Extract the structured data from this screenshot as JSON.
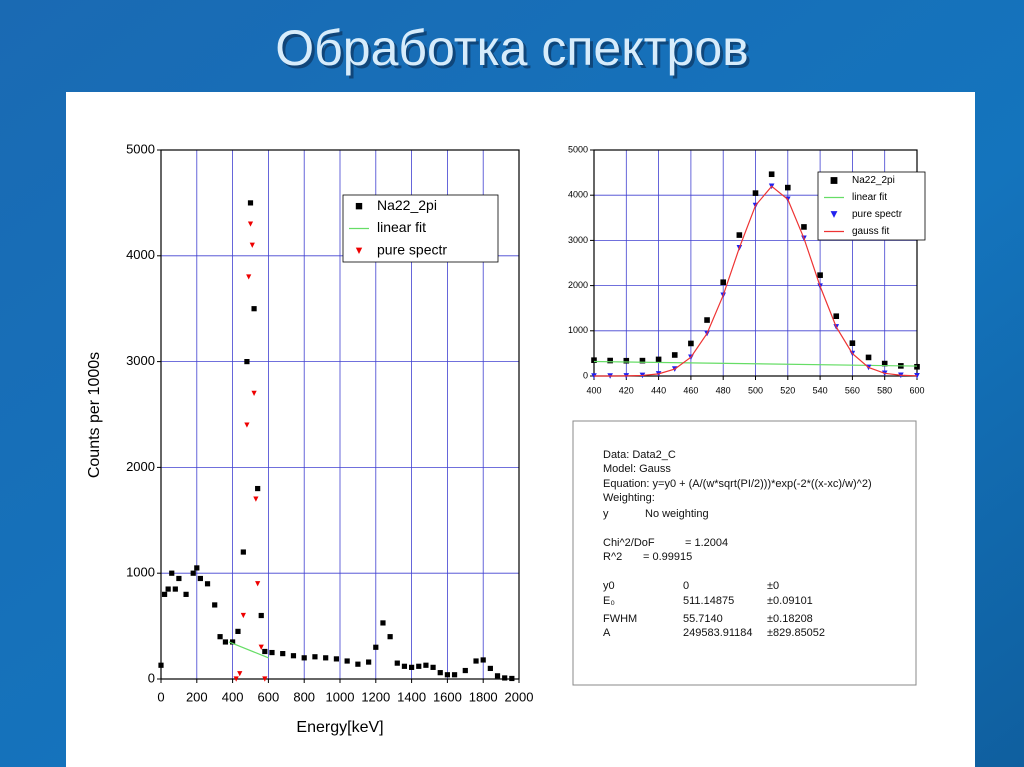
{
  "slide_title": "Обработка спектров",
  "chart_data": [
    {
      "type": "scatter",
      "xlabel": "Energy[keV]",
      "ylabel": "Counts per 1000s",
      "xlim": [
        0,
        2000
      ],
      "ylim": [
        0,
        5000
      ],
      "xticks": [
        0,
        200,
        400,
        600,
        800,
        1000,
        1200,
        1400,
        1600,
        1800,
        2000
      ],
      "yticks": [
        0,
        1000,
        2000,
        3000,
        4000,
        5000
      ],
      "grid": true,
      "legend": "upper right",
      "series": [
        {
          "name": "Na22_2pi",
          "color": "#000000",
          "marker": "square",
          "x": [
            0,
            20,
            40,
            60,
            80,
            100,
            140,
            180,
            200,
            220,
            260,
            300,
            330,
            360,
            400,
            430,
            460,
            480,
            500,
            520,
            540,
            560,
            580,
            620,
            680,
            740,
            800,
            860,
            920,
            980,
            1040,
            1100,
            1160,
            1200,
            1240,
            1280,
            1320,
            1360,
            1400,
            1440,
            1480,
            1520,
            1560,
            1600,
            1640,
            1700,
            1760,
            1800,
            1840,
            1880,
            1920,
            1960
          ],
          "values": [
            130,
            800,
            850,
            1000,
            850,
            950,
            800,
            1000,
            1050,
            950,
            900,
            700,
            400,
            350,
            350,
            450,
            1200,
            3000,
            4500,
            3500,
            1800,
            600,
            260,
            250,
            240,
            220,
            200,
            210,
            200,
            190,
            170,
            140,
            160,
            300,
            530,
            400,
            150,
            120,
            110,
            120,
            130,
            110,
            60,
            40,
            40,
            80,
            170,
            180,
            100,
            30,
            10,
            5
          ]
        },
        {
          "name": "linear fit",
          "color": "#66dd66",
          "marker": "line",
          "x": [
            380,
            600
          ],
          "values": [
            350,
            200
          ]
        },
        {
          "name": "pure spectr",
          "color": "#ee0000",
          "marker": "triangle",
          "x": [
            420,
            440,
            460,
            480,
            490,
            500,
            510,
            520,
            530,
            540,
            560,
            580
          ],
          "values": [
            0,
            50,
            600,
            2400,
            3800,
            4300,
            4100,
            2700,
            1700,
            900,
            300,
            0
          ]
        }
      ]
    },
    {
      "type": "scatter",
      "xlim": [
        400,
        600
      ],
      "ylim": [
        0,
        5000
      ],
      "xticks": [
        400,
        420,
        440,
        460,
        480,
        500,
        520,
        540,
        560,
        580,
        600
      ],
      "yticks": [
        0,
        1000,
        2000,
        3000,
        4000,
        5000
      ],
      "grid": true,
      "legend": "upper right",
      "series": [
        {
          "name": "Na22_2pi",
          "color": "#000000",
          "marker": "square",
          "x": [
            400,
            410,
            420,
            430,
            440,
            450,
            460,
            470,
            480,
            490,
            500,
            510,
            520,
            530,
            540,
            550,
            560,
            570,
            580,
            590,
            600
          ],
          "values": [
            350,
            342,
            338,
            340,
            367,
            465,
            720,
            1238,
            2075,
            3118,
            4046,
            4464,
            4168,
            3298,
            2231,
            1323,
            726,
            411,
            275,
            224,
            204
          ]
        },
        {
          "name": "linear fit",
          "color": "#66dd66",
          "marker": "line",
          "x": [
            400,
            600
          ],
          "values": [
            320,
            220
          ]
        },
        {
          "name": "pure spectr",
          "color": "#2222ee",
          "marker": "triangle",
          "x": [
            400,
            410,
            420,
            430,
            440,
            450,
            460,
            470,
            480,
            490,
            500,
            510,
            520,
            530,
            540,
            550,
            560,
            570,
            580,
            590,
            600
          ],
          "values": [
            0,
            0,
            3,
            12,
            47,
            153,
            415,
            940,
            1785,
            2836,
            3771,
            4196,
            3908,
            3046,
            1986,
            1085,
            496,
            189,
            60,
            16,
            4
          ]
        },
        {
          "name": "gauss fit",
          "color": "#ee3333",
          "marker": "line",
          "x": [
            400,
            410,
            420,
            430,
            440,
            450,
            460,
            470,
            480,
            490,
            500,
            510,
            520,
            530,
            540,
            550,
            560,
            570,
            580,
            590,
            600
          ],
          "values": [
            0,
            0,
            3,
            12,
            47,
            153,
            415,
            940,
            1785,
            2836,
            3771,
            4196,
            3908,
            3046,
            1986,
            1085,
            496,
            189,
            60,
            16,
            4
          ]
        }
      ]
    }
  ],
  "fit_report": {
    "data": "Data: Data2_C",
    "model": "Model: Gauss",
    "equation": "Equation: y=y0 + (A/(w*sqrt(PI/2)))*exp(-2*((x-xc)/w)^2)",
    "weighting": "Weighting:",
    "weighting_row": [
      "y",
      "No weighting"
    ],
    "stats": [
      [
        "Chi^2/DoF",
        "= 1.2004"
      ],
      [
        "R^2",
        "= 0.99915"
      ]
    ],
    "params": [
      [
        "y0",
        "0",
        "±0"
      ],
      [
        "E₀",
        "511.14875",
        "±0.09101"
      ],
      [
        "FWHM",
        "55.7140",
        "±0.18208"
      ],
      [
        "A",
        "249583.91184",
        "±829.85052"
      ]
    ]
  }
}
